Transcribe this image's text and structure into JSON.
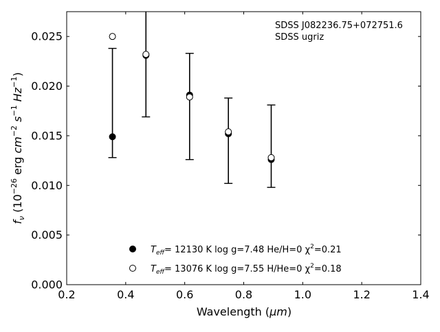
{
  "chart_data": {
    "type": "scatter",
    "xlabel": "Wavelength (",
    "xlabel_unit": "μm",
    "xlabel_end": ")",
    "xlim": [
      0.2,
      1.4
    ],
    "ylim": [
      0.0,
      0.0275
    ],
    "xticks": [
      0.2,
      0.4,
      0.6,
      0.8,
      1.0,
      1.2,
      1.4
    ],
    "xtick_labels": [
      "0.2",
      "0.4",
      "0.6",
      "0.8",
      "1.0",
      "1.2",
      "1.4"
    ],
    "yticks": [
      0.0,
      0.005,
      0.01,
      0.015,
      0.02,
      0.025
    ],
    "ytick_labels": [
      "0.000",
      "0.005",
      "0.010",
      "0.015",
      "0.020",
      "0.025"
    ],
    "annotation_lines": [
      "SDSS J082236.75+072751.6",
      "SDSS ugriz"
    ],
    "observed": {
      "x": [
        0.3551,
        0.4686,
        0.6166,
        0.748,
        0.8932
      ],
      "y": [
        0.0149,
        0.0231,
        0.019,
        0.0153,
        0.0126
      ],
      "ylow": [
        0.0128,
        0.0169,
        0.0126,
        0.0102,
        0.0098
      ],
      "yhigh": [
        0.0238,
        0.0275,
        0.0233,
        0.0188,
        0.0181
      ]
    },
    "series": [
      {
        "label_parts": [
          "T",
          "eff",
          "= 12130 K  log g=7.48  He/H=0  χ",
          "2",
          "=0.21"
        ],
        "marker": "filled-circle",
        "x": [
          0.3551,
          0.4686,
          0.6166,
          0.748,
          0.8932
        ],
        "y": [
          0.0149,
          0.0231,
          0.0191,
          0.0152,
          0.0126
        ]
      },
      {
        "label_parts": [
          "T",
          "eff",
          "= 13076 K  log g=7.55  H/He=0  χ",
          "2",
          "=0.18"
        ],
        "marker": "open-circle",
        "x": [
          0.3551,
          0.4686,
          0.6166,
          0.748,
          0.8932
        ],
        "y": [
          0.025,
          0.0232,
          0.0189,
          0.0154,
          0.0128
        ]
      }
    ]
  }
}
